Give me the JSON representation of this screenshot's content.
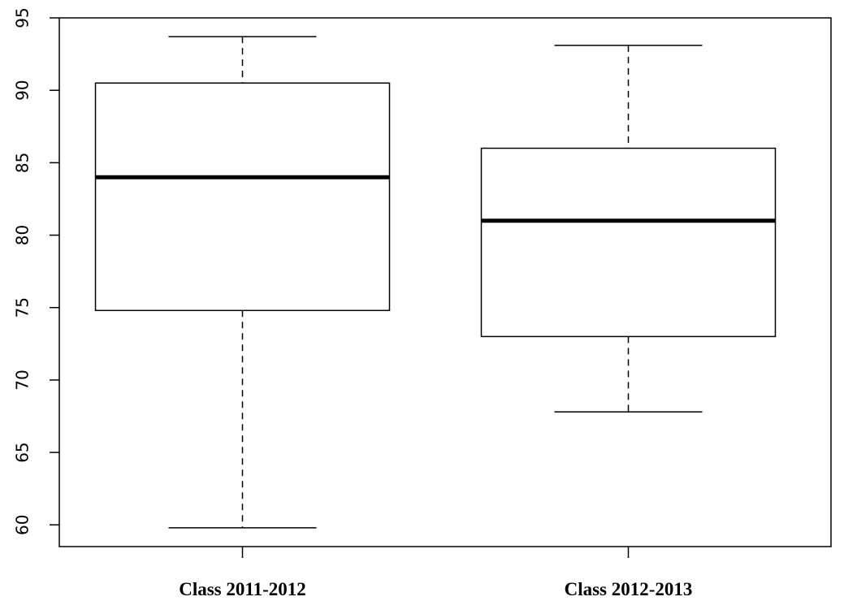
{
  "chart_data": {
    "type": "boxplot",
    "title": "",
    "xlabel": "",
    "ylabel": "",
    "ylim": [
      58.5,
      95
    ],
    "yticks": [
      60,
      65,
      70,
      75,
      80,
      85,
      90,
      95
    ],
    "categories": [
      "Class 2011-2012",
      "Class 2012-2013"
    ],
    "series": [
      {
        "category": "Class 2011-2012",
        "min": 59.8,
        "q1": 74.8,
        "median": 84.0,
        "q3": 90.5,
        "max": 93.7
      },
      {
        "category": "Class 2012-2013",
        "min": 67.8,
        "q1": 73.0,
        "median": 81.0,
        "q3": 86.0,
        "max": 93.1
      }
    ],
    "grid": false,
    "legend": "none"
  }
}
